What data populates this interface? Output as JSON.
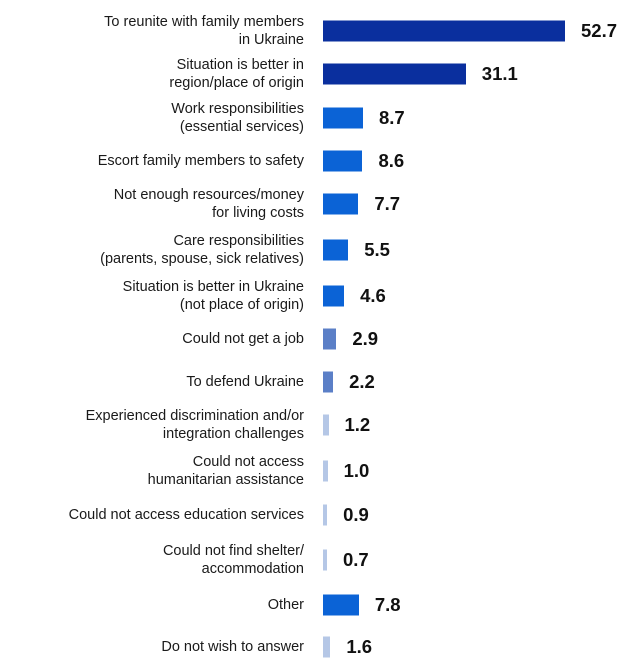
{
  "chart_data": {
    "type": "bar",
    "orientation": "horizontal",
    "title": "",
    "xlabel": "",
    "ylabel": "",
    "xlim": [
      0,
      52.7
    ],
    "grid": false,
    "categories": [
      "To reunite with family members\nin Ukraine",
      "Situation is better in\nregion/place of origin",
      "Work responsibilities\n(essential services)",
      "Escort family members to safety",
      "Not enough resources/money\nfor living costs",
      "Care responsibilities\n(parents, spouse, sick relatives)",
      "Situation is better in Ukraine\n(not place of origin)",
      "Could not get a job",
      "To defend Ukraine",
      "Experienced discrimination and/or\nintegration challenges",
      "Could not access\nhumanitarian assistance",
      "Could not access education services",
      "Could not find shelter/\naccommodation",
      "Other",
      "Do not wish to answer"
    ],
    "values": [
      52.7,
      31.1,
      8.7,
      8.6,
      7.7,
      5.5,
      4.6,
      2.9,
      2.2,
      1.2,
      1.0,
      0.9,
      0.7,
      7.8,
      1.6
    ],
    "value_labels": [
      "52.7",
      "31.1",
      "8.7",
      "8.6",
      "7.7",
      "5.5",
      "4.6",
      "2.9",
      "2.2",
      "1.2",
      "1.0",
      "0.9",
      "0.7",
      "7.8",
      "1.6"
    ],
    "bar_colors": [
      "#0a2f9e",
      "#0a2f9e",
      "#0b63d6",
      "#0b63d6",
      "#0b63d6",
      "#0b63d6",
      "#0b63d6",
      "#5b7fc7",
      "#5b7fc7",
      "#b5c7e6",
      "#b5c7e6",
      "#b5c7e6",
      "#b5c7e6",
      "#0b63d6",
      "#b5c7e6"
    ]
  }
}
